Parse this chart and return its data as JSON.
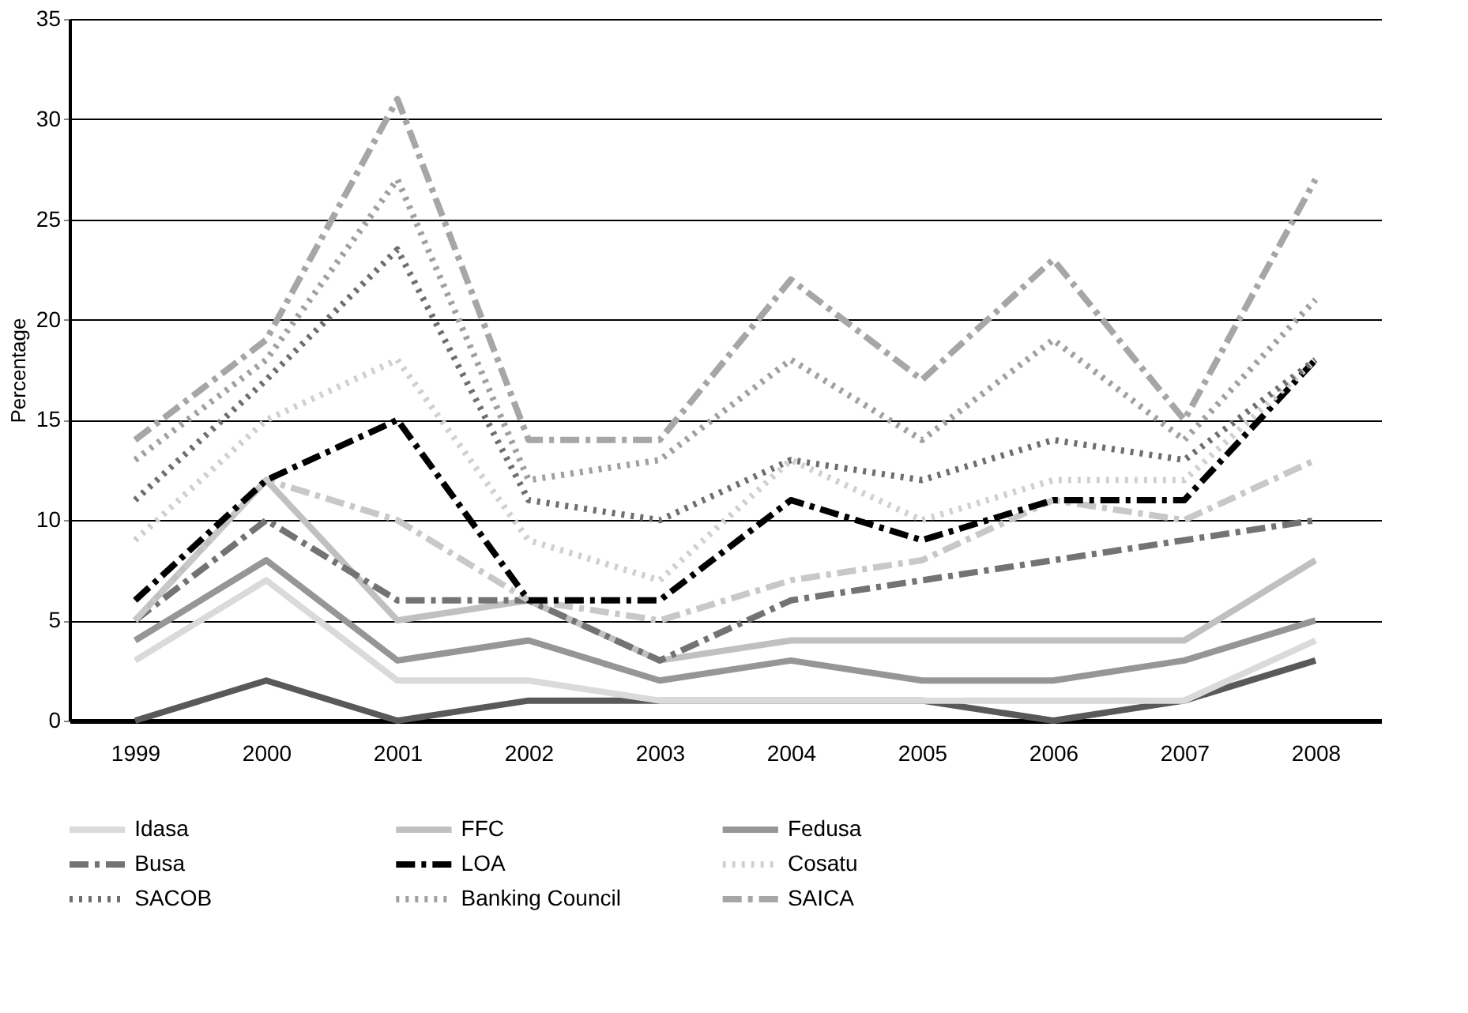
{
  "chart_data": {
    "type": "line",
    "ylabel": "Percentage",
    "categories": [
      "1999",
      "2000",
      "2001",
      "2002",
      "2003",
      "2004",
      "2005",
      "2006",
      "2007",
      "2008"
    ],
    "ylim": [
      0,
      35
    ],
    "yticks": [
      0,
      5,
      10,
      15,
      20,
      25,
      30,
      35
    ],
    "grid": "y",
    "legend": "bottom",
    "series": [
      {
        "color": "#595959",
        "line_style": "solid",
        "values": [
          0,
          2,
          0,
          1,
          1,
          1,
          1,
          0,
          1,
          3
        ]
      },
      {
        "name": "Idasa",
        "color": "#dadada",
        "line_style": "solid",
        "values": [
          3,
          7,
          2,
          2,
          1,
          1,
          1,
          1,
          1,
          4
        ]
      },
      {
        "name": "FFC",
        "color": "#c0c0c0",
        "line_style": "solid",
        "values": [
          5,
          12,
          5,
          6,
          3,
          4,
          4,
          4,
          4,
          8
        ]
      },
      {
        "name": "Fedusa",
        "color": "#969696",
        "line_style": "solid",
        "values": [
          4,
          8,
          3,
          4,
          2,
          3,
          2,
          2,
          3,
          5
        ]
      },
      {
        "name": "Busa",
        "color": "#737373",
        "line_style": "dashed",
        "values": [
          5,
          10,
          6,
          6,
          3,
          6,
          7,
          8,
          9,
          10
        ]
      },
      {
        "color": "#c8c8c8",
        "line_style": "dashed",
        "values": [
          5,
          12,
          10,
          6,
          5,
          7,
          8,
          11,
          10,
          13
        ]
      },
      {
        "name": "LOA",
        "color": "#000000",
        "line_style": "dashed",
        "values": [
          6,
          12,
          15,
          6,
          6,
          11,
          9,
          11,
          11,
          18
        ]
      },
      {
        "name": "Cosatu",
        "color": "#d0d0d0",
        "line_style": "dotted",
        "values": [
          9,
          15,
          18,
          9,
          7,
          13,
          10,
          12,
          12,
          18
        ]
      },
      {
        "name": "SACOB",
        "color": "#6e6e6e",
        "line_style": "dotted",
        "values": [
          11,
          17,
          23.5,
          11,
          10,
          13,
          12,
          14,
          13,
          18
        ]
      },
      {
        "name": "Banking Council",
        "color": "#a0a0a0",
        "line_style": "dotted",
        "values": [
          13,
          18,
          27,
          12,
          13,
          18,
          14,
          19,
          14,
          21
        ]
      },
      {
        "name": "SAICA",
        "color": "#a6a6a6",
        "line_style": "dashed",
        "values": [
          14,
          19,
          31,
          14,
          14,
          22,
          17,
          23,
          15,
          27
        ]
      }
    ]
  }
}
